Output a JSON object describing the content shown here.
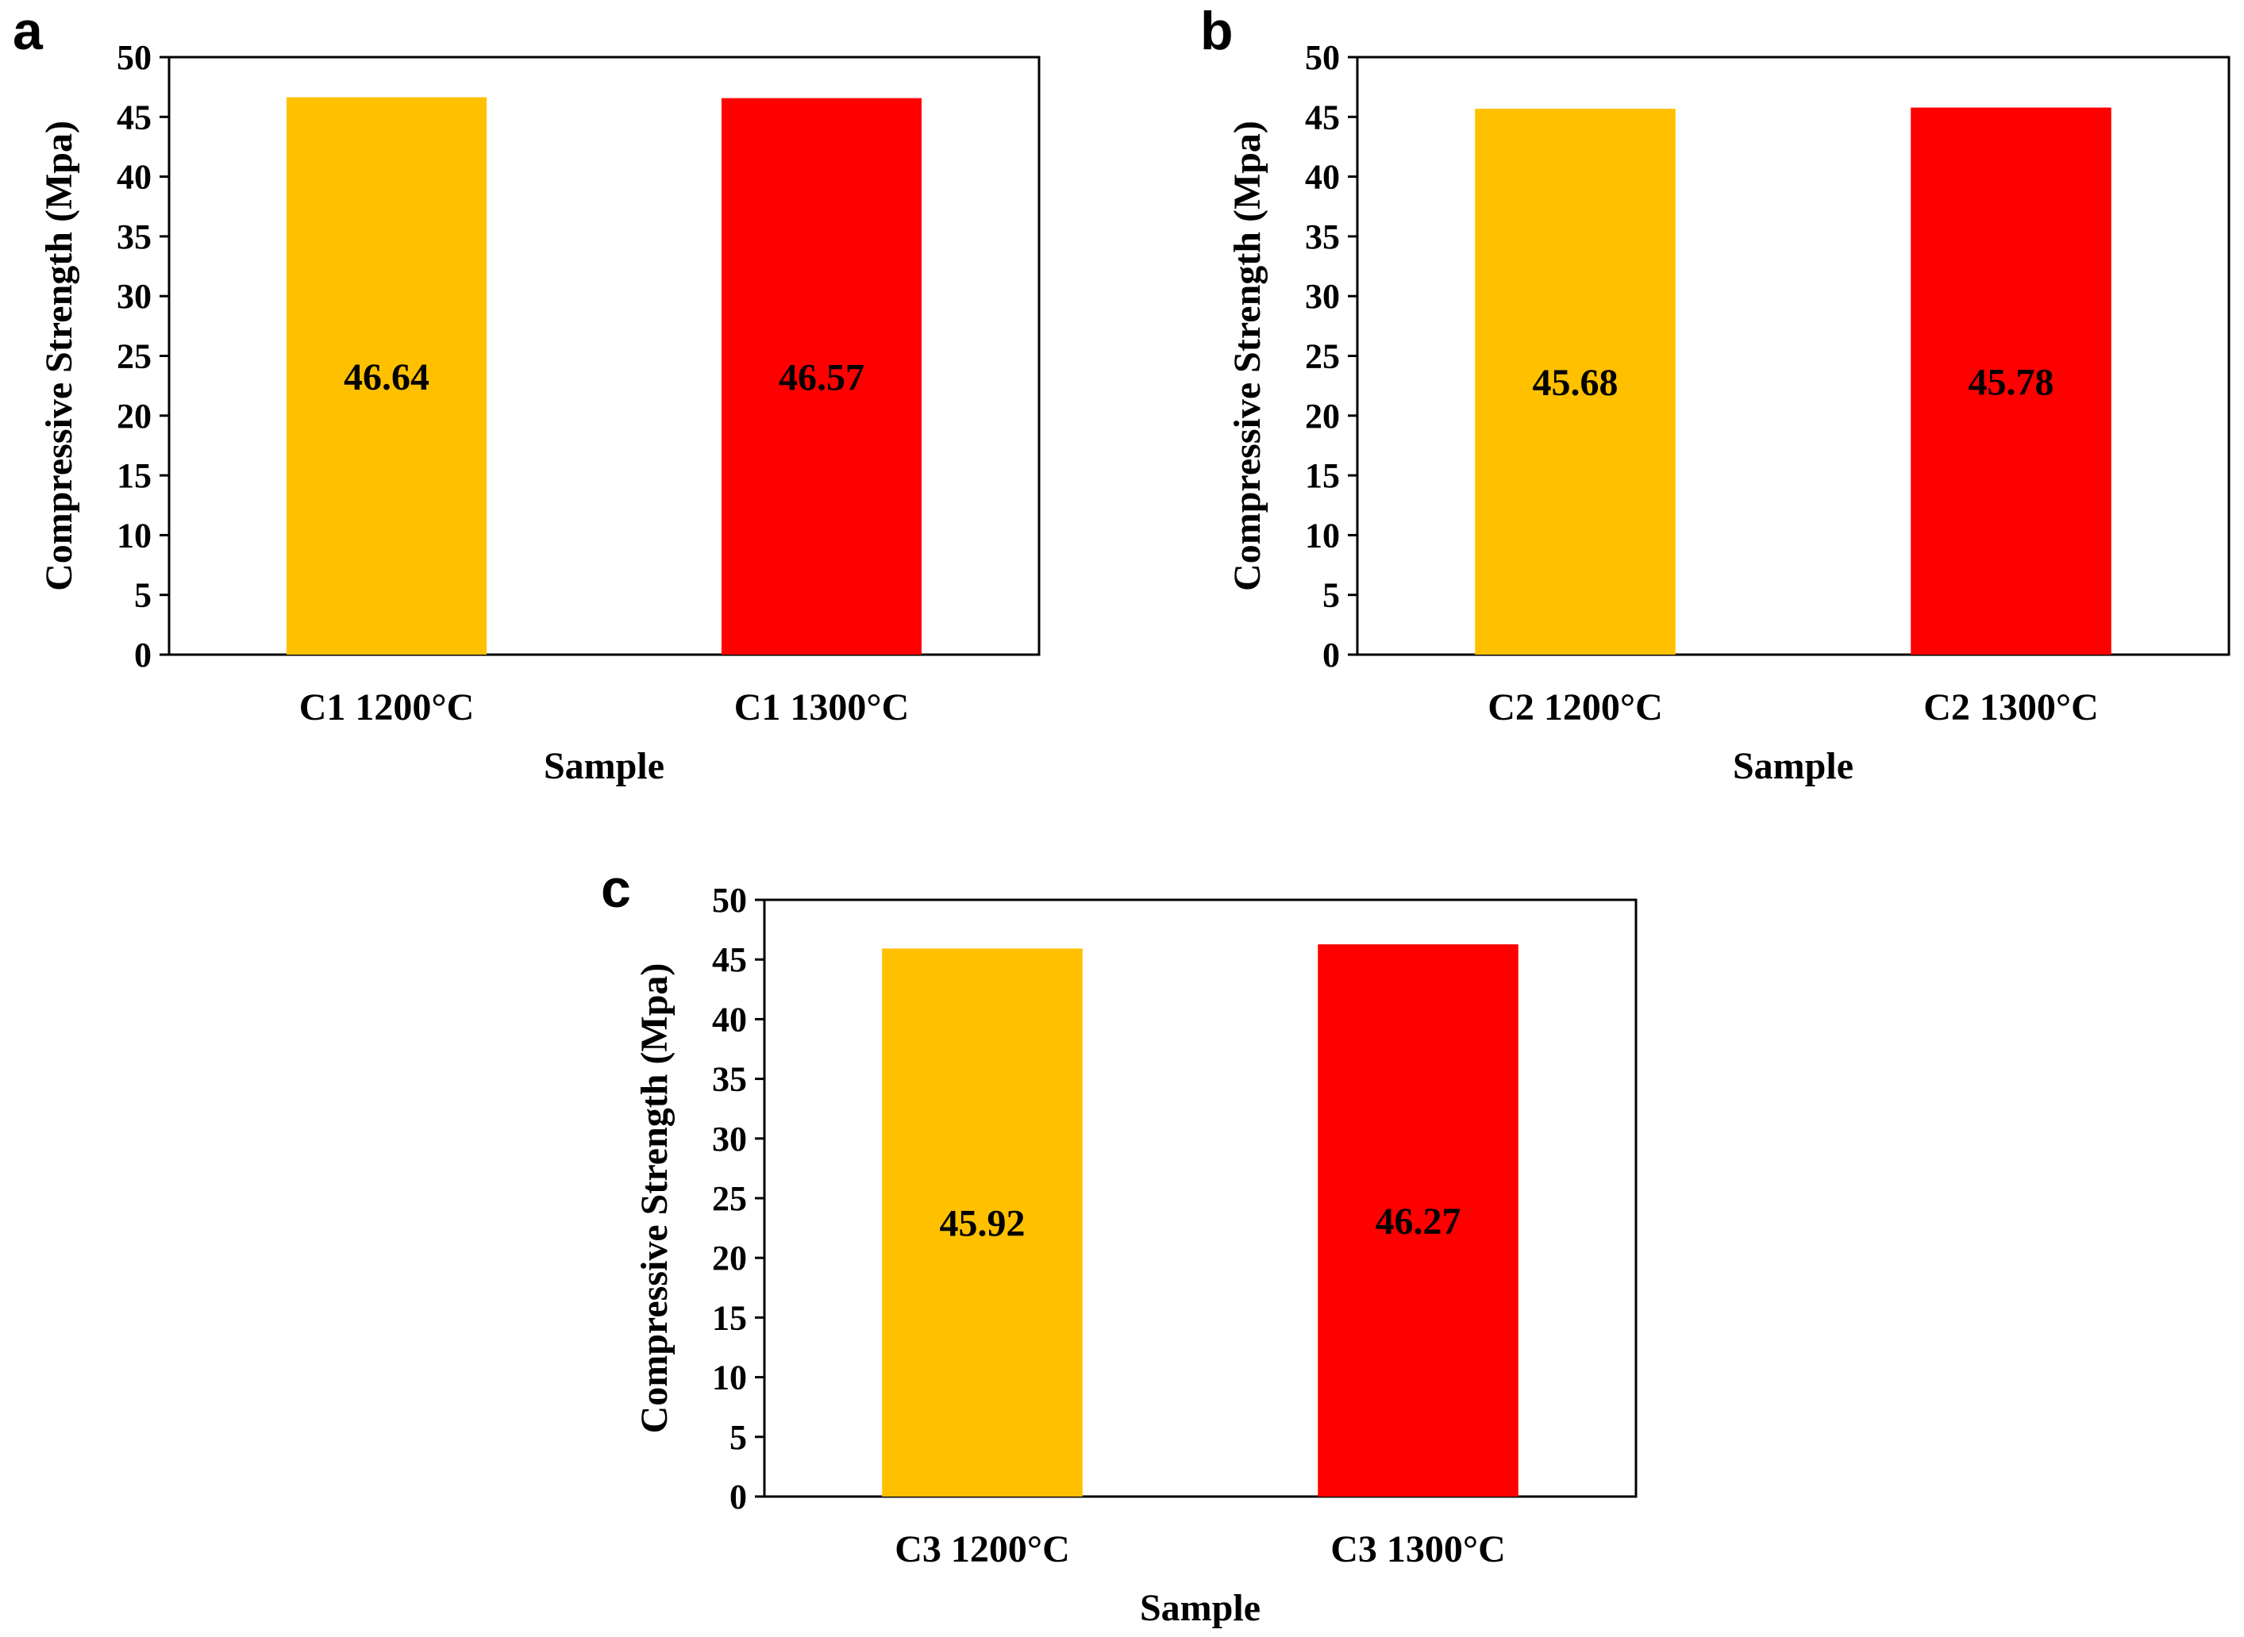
{
  "chart_data": [
    {
      "type": "bar",
      "panel": "a",
      "categories": [
        "C1 1200°C",
        "C1 1300°C"
      ],
      "values": [
        46.64,
        46.57
      ],
      "data_labels": [
        "46.64",
        "46.57"
      ],
      "colors": [
        "#FFC000",
        "#FF0000"
      ],
      "xlabel": "Sample",
      "ylabel": "Compressive Strength (Mpa)",
      "ylim": [
        0,
        50
      ],
      "yticks": [
        "0",
        "5",
        "10",
        "15",
        "20",
        "25",
        "30",
        "35",
        "40",
        "45",
        "50"
      ],
      "grid": false,
      "legend": "none"
    },
    {
      "type": "bar",
      "panel": "b",
      "categories": [
        "C2 1200°C",
        "C2 1300°C"
      ],
      "values": [
        45.68,
        45.78
      ],
      "data_labels": [
        "45.68",
        "45.78"
      ],
      "colors": [
        "#FFC000",
        "#FF0000"
      ],
      "xlabel": "Sample",
      "ylabel": "Compressive Strength (Mpa)",
      "ylim": [
        0,
        50
      ],
      "yticks": [
        "0",
        "5",
        "10",
        "15",
        "20",
        "25",
        "30",
        "35",
        "40",
        "45",
        "50"
      ],
      "grid": false,
      "legend": "none"
    },
    {
      "type": "bar",
      "panel": "c",
      "categories": [
        "C3 1200°C",
        "C3 1300°C"
      ],
      "values": [
        45.92,
        46.27
      ],
      "data_labels": [
        "45.92",
        "46.27"
      ],
      "colors": [
        "#FFC000",
        "#FF0000"
      ],
      "xlabel": "Sample",
      "ylabel": "Compressive Strength (Mpa)",
      "ylim": [
        0,
        50
      ],
      "yticks": [
        "0",
        "5",
        "10",
        "15",
        "20",
        "25",
        "30",
        "35",
        "40",
        "45",
        "50"
      ],
      "grid": false,
      "legend": "none"
    }
  ]
}
